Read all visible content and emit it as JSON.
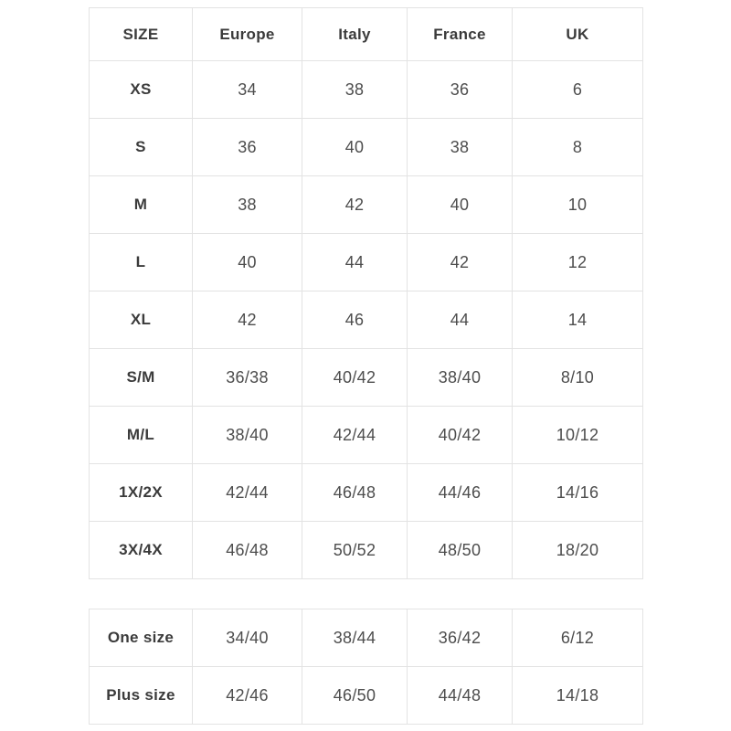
{
  "page": {
    "background_color": "#ffffff",
    "border_color": "#e3e3e3",
    "header_text_color": "#3b3b3b",
    "cell_text_color": "#4d4d4d"
  },
  "size_table": {
    "columns": [
      "SIZE",
      "Europe",
      "Italy",
      "France",
      "UK"
    ],
    "rows": [
      [
        "XS",
        "34",
        "38",
        "36",
        "6"
      ],
      [
        "S",
        "36",
        "40",
        "38",
        "8"
      ],
      [
        "M",
        "38",
        "42",
        "40",
        "10"
      ],
      [
        "L",
        "40",
        "44",
        "42",
        "12"
      ],
      [
        "XL",
        "42",
        "46",
        "44",
        "14"
      ],
      [
        "S/M",
        "36/38",
        "40/42",
        "38/40",
        "8/10"
      ],
      [
        "M/L",
        "38/40",
        "42/44",
        "40/42",
        "10/12"
      ],
      [
        "1X/2X",
        "42/44",
        "46/48",
        "44/46",
        "14/16"
      ],
      [
        "3X/4X",
        "46/48",
        "50/52",
        "48/50",
        "18/20"
      ]
    ]
  },
  "special_size_table": {
    "rows": [
      [
        "One size",
        "34/40",
        "38/44",
        "36/42",
        "6/12"
      ],
      [
        "Plus size",
        "42/46",
        "46/50",
        "44/48",
        "14/18"
      ]
    ]
  }
}
